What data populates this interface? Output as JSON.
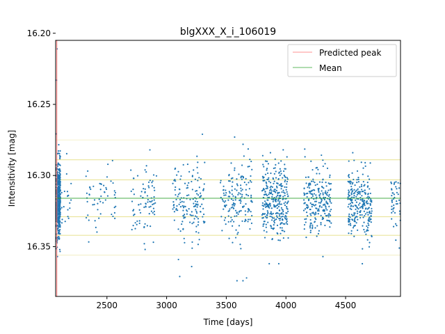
{
  "chart_data": {
    "type": "scatter",
    "title": "blgXXX_X_i_106019",
    "xlabel": "Time [days]",
    "ylabel": "Intensitivity [mag]",
    "xlim": [
      2070,
      4960
    ],
    "ylim": [
      16.385,
      16.205
    ],
    "y_axis_inverted": true,
    "xticks": [
      2500,
      3000,
      3500,
      4000,
      4500
    ],
    "xtick_labels": [
      "2500",
      "3000",
      "3500",
      "4000",
      "4500"
    ],
    "yticks": [
      16.2,
      16.25,
      16.3,
      16.35
    ],
    "ytick_labels": [
      "16.20",
      "16.25",
      "16.30",
      "16.35"
    ],
    "legend": {
      "position": "top-right",
      "entries": [
        {
          "label": "Predicted peak",
          "color": "#ff6b6b"
        },
        {
          "label": "Mean",
          "color": "#2ca02c"
        }
      ]
    },
    "predicted_peak_x": 2080,
    "mean_y": 16.316,
    "reference_lines_y": [
      16.275,
      16.289,
      16.303,
      16.329,
      16.342,
      16.356
    ],
    "reference_line_color": "#d4c93a",
    "point_color": "#1f77b4",
    "clusters": [
      {
        "x_min": 2075,
        "x_max": 2110,
        "y_mean": 16.316,
        "y_sd": 0.013,
        "count": 520
      },
      {
        "x_min": 2110,
        "x_max": 2200,
        "y_mean": 16.316,
        "y_sd": 0.011,
        "count": 20
      },
      {
        "x_min": 2320,
        "x_max": 2580,
        "y_mean": 16.316,
        "y_sd": 0.01,
        "count": 55
      },
      {
        "x_min": 2700,
        "x_max": 2920,
        "y_mean": 16.318,
        "y_sd": 0.012,
        "count": 80
      },
      {
        "x_min": 3050,
        "x_max": 3320,
        "y_mean": 16.318,
        "y_sd": 0.013,
        "count": 150
      },
      {
        "x_min": 3450,
        "x_max": 3720,
        "y_mean": 16.318,
        "y_sd": 0.014,
        "count": 165
      },
      {
        "x_min": 3800,
        "x_max": 4020,
        "y_mean": 16.316,
        "y_sd": 0.013,
        "count": 320
      },
      {
        "x_min": 4150,
        "x_max": 4380,
        "y_mean": 16.318,
        "y_sd": 0.011,
        "count": 230
      },
      {
        "x_min": 4520,
        "x_max": 4720,
        "y_mean": 16.319,
        "y_sd": 0.012,
        "count": 260
      },
      {
        "x_min": 4880,
        "x_max": 4960,
        "y_mean": 16.318,
        "y_sd": 0.011,
        "count": 45
      }
    ],
    "outliers": [
      {
        "x": 2082,
        "y": 16.211
      },
      {
        "x": 2078,
        "y": 16.233
      },
      {
        "x": 2085,
        "y": 16.357
      },
      {
        "x": 3110,
        "y": 16.371
      },
      {
        "x": 3210,
        "y": 16.364
      },
      {
        "x": 3300,
        "y": 16.271
      },
      {
        "x": 3570,
        "y": 16.273
      },
      {
        "x": 3590,
        "y": 16.374
      },
      {
        "x": 3640,
        "y": 16.374
      },
      {
        "x": 3670,
        "y": 16.372
      },
      {
        "x": 3860,
        "y": 16.362
      },
      {
        "x": 3940,
        "y": 16.362
      },
      {
        "x": 2820,
        "y": 16.352
      },
      {
        "x": 4310,
        "y": 16.357
      },
      {
        "x": 4640,
        "y": 16.362
      },
      {
        "x": 4950,
        "y": 16.351
      },
      {
        "x": 2860,
        "y": 16.282
      },
      {
        "x": 4560,
        "y": 16.284
      },
      {
        "x": 4210,
        "y": 16.29
      },
      {
        "x": 3870,
        "y": 16.284
      }
    ]
  }
}
